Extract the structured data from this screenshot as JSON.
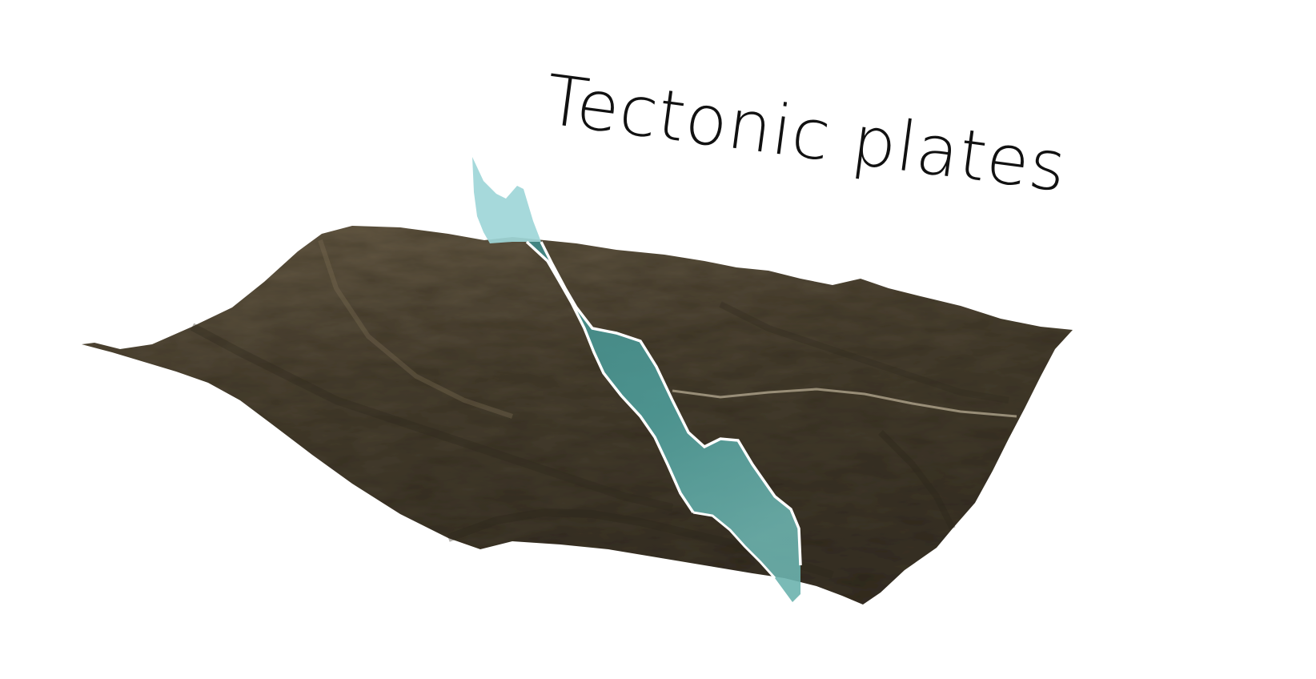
{
  "title": "Tectonic plates",
  "colors": {
    "terrain_base": "#4d4334",
    "terrain_dark": "#2f2a1f",
    "terrain_light": "#7a6c55",
    "fault_fill": "#4f9a98",
    "fault_upper": "#9ed6d8",
    "fault_edge": "#ffffff"
  }
}
